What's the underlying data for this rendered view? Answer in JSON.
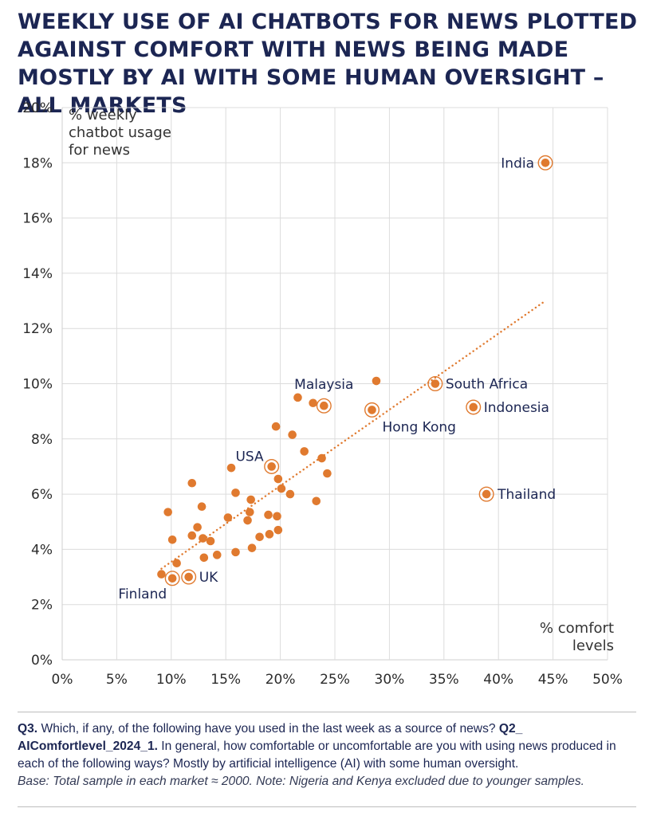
{
  "title": "WEEKLY USE OF AI CHATBOTS FOR NEWS PLOTTED AGAINST COMFORT WITH NEWS BEING MADE MOSTLY BY AI WITH SOME HUMAN OVERSIGHT – ALL MARKETS",
  "colors": {
    "accent": "#e07a2f",
    "navy": "#1c2653"
  },
  "chart_data": {
    "type": "scatter",
    "title": "WEEKLY USE OF AI CHATBOTS FOR NEWS PLOTTED AGAINST COMFORT WITH NEWS BEING MADE MOSTLY BY AI WITH SOME HUMAN OVERSIGHT – ALL MARKETS",
    "ylabel_lines": [
      "% weekly",
      "chatbot usage",
      "for news"
    ],
    "xlabel_lines": [
      "% comfort",
      "levels"
    ],
    "xlim": [
      0,
      50
    ],
    "ylim": [
      0,
      20
    ],
    "xticks": [
      0,
      5,
      10,
      15,
      20,
      25,
      30,
      35,
      40,
      45,
      50
    ],
    "yticks": [
      0,
      2,
      4,
      6,
      8,
      10,
      12,
      14,
      16,
      18,
      20
    ],
    "xtick_labels": [
      "0%",
      "5%",
      "10%",
      "15%",
      "20%",
      "25%",
      "30%",
      "35%",
      "40%",
      "45%",
      "50%"
    ],
    "ytick_labels": [
      "0%",
      "2%",
      "4%",
      "6%",
      "8%",
      "10%",
      "12%",
      "14%",
      "16%",
      "18%",
      "20%"
    ],
    "highlighted": [
      {
        "name": "India",
        "x": 44.3,
        "y": 18.0
      },
      {
        "name": "South Africa",
        "x": 34.2,
        "y": 10.0
      },
      {
        "name": "Malaysia",
        "x": 24.0,
        "y": 9.2
      },
      {
        "name": "Indonesia",
        "x": 37.7,
        "y": 9.15
      },
      {
        "name": "Hong Kong",
        "x": 28.4,
        "y": 9.05
      },
      {
        "name": "USA",
        "x": 19.2,
        "y": 7.0
      },
      {
        "name": "Thailand",
        "x": 38.9,
        "y": 6.0
      },
      {
        "name": "UK",
        "x": 11.6,
        "y": 3.0
      },
      {
        "name": "Finland",
        "x": 10.1,
        "y": 2.95
      }
    ],
    "points": [
      {
        "x": 9.1,
        "y": 3.1
      },
      {
        "x": 9.7,
        "y": 5.35
      },
      {
        "x": 10.1,
        "y": 4.35
      },
      {
        "x": 10.5,
        "y": 3.5
      },
      {
        "x": 11.9,
        "y": 6.4
      },
      {
        "x": 11.9,
        "y": 4.5
      },
      {
        "x": 12.4,
        "y": 4.8
      },
      {
        "x": 12.8,
        "y": 5.55
      },
      {
        "x": 12.9,
        "y": 4.4
      },
      {
        "x": 13.0,
        "y": 3.7
      },
      {
        "x": 13.6,
        "y": 4.3
      },
      {
        "x": 14.2,
        "y": 3.8
      },
      {
        "x": 15.2,
        "y": 5.15
      },
      {
        "x": 15.5,
        "y": 6.95
      },
      {
        "x": 15.9,
        "y": 6.05
      },
      {
        "x": 15.9,
        "y": 3.9
      },
      {
        "x": 17.0,
        "y": 5.05
      },
      {
        "x": 17.2,
        "y": 5.35
      },
      {
        "x": 17.3,
        "y": 5.8
      },
      {
        "x": 17.4,
        "y": 4.05
      },
      {
        "x": 18.1,
        "y": 4.45
      },
      {
        "x": 18.9,
        "y": 5.25
      },
      {
        "x": 19.0,
        "y": 4.55
      },
      {
        "x": 19.6,
        "y": 8.45
      },
      {
        "x": 19.7,
        "y": 5.2
      },
      {
        "x": 19.8,
        "y": 6.55
      },
      {
        "x": 19.8,
        "y": 4.7
      },
      {
        "x": 20.1,
        "y": 6.2
      },
      {
        "x": 20.9,
        "y": 6.0
      },
      {
        "x": 21.1,
        "y": 8.15
      },
      {
        "x": 21.6,
        "y": 9.5
      },
      {
        "x": 22.2,
        "y": 7.55
      },
      {
        "x": 23.0,
        "y": 9.3
      },
      {
        "x": 23.3,
        "y": 5.75
      },
      {
        "x": 23.8,
        "y": 7.3
      },
      {
        "x": 24.3,
        "y": 6.75
      },
      {
        "x": 28.8,
        "y": 10.1
      }
    ],
    "trendline": {
      "x": [
        9.1,
        44.3
      ],
      "y": [
        3.3,
        13.0
      ]
    }
  },
  "footnote": {
    "q3_label": "Q3.",
    "q3_text": " Which, if any, of the following have you used in the last week as a source of news? ",
    "q2_label": "Q2_ AIComfortlevel_2024_1.",
    "q2_text": " In general, how comfortable or uncomfortable are you with using news produced in each of the following ways? Mostly by artificial intelligence (AI) with some human oversight.",
    "base": "Base: Total sample in each market ≈ 2000. Note: Nigeria and Kenya excluded due to younger samples."
  }
}
